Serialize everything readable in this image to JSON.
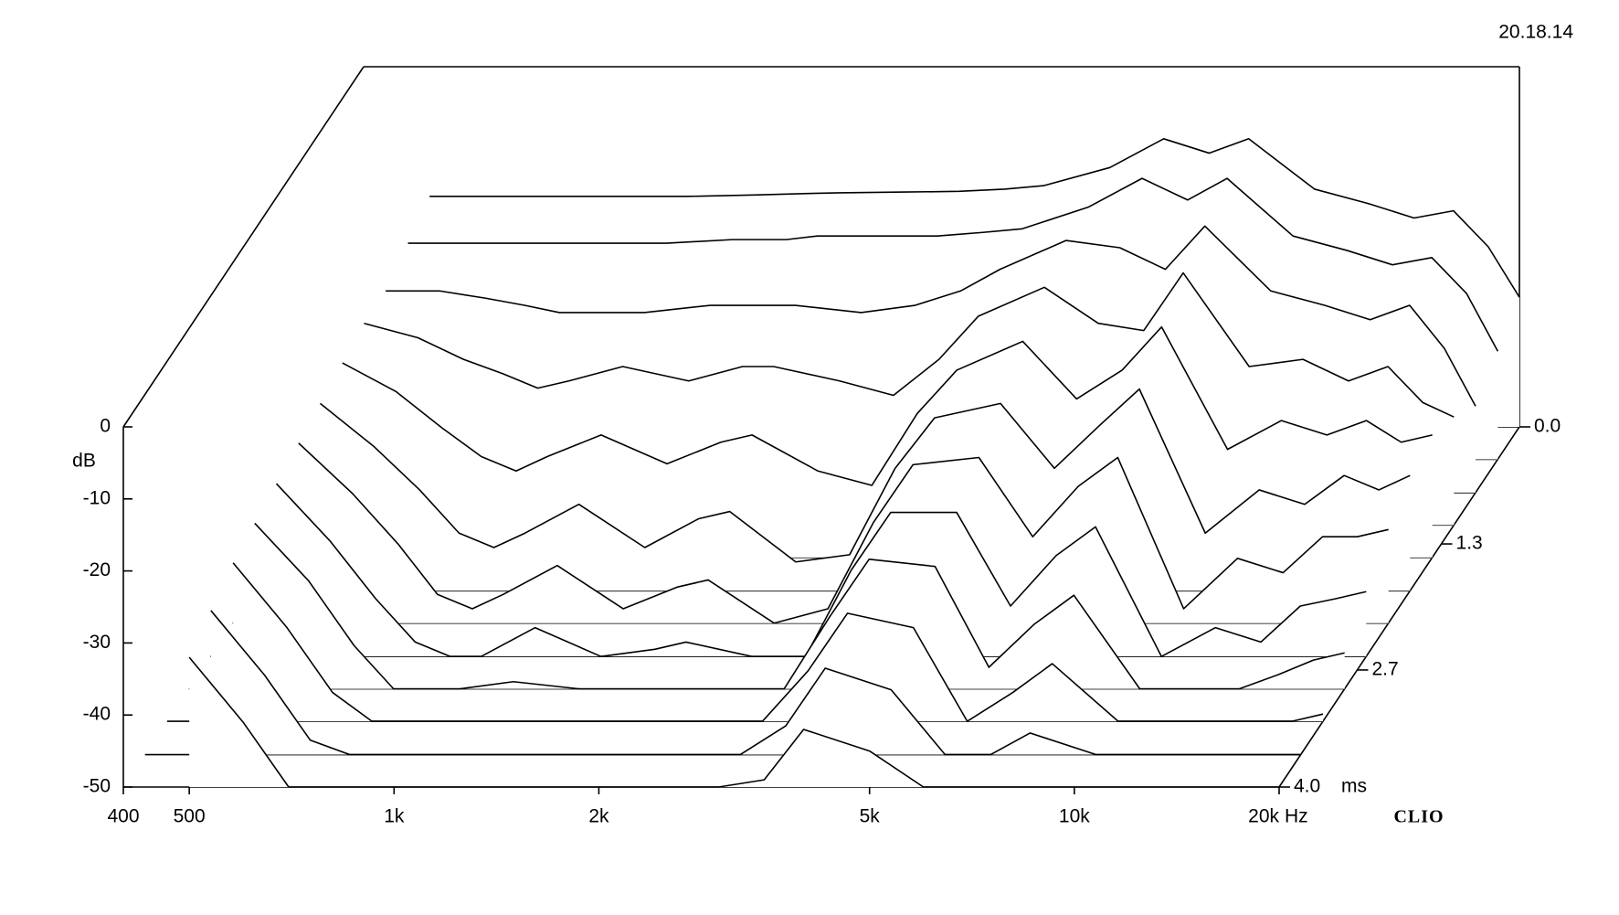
{
  "chart_data": {
    "type": "waterfall",
    "timestamp": "20.18.14",
    "brand": "CLIO",
    "ylabel": "dB",
    "xunit": "Hz",
    "zunit": "ms",
    "color": "#000000",
    "xlim": [
      400,
      20000
    ],
    "xscale": "log",
    "xticks": [
      400,
      500,
      {
        "value": 1000,
        "label": "1k"
      },
      {
        "value": 2000,
        "label": "2k"
      },
      {
        "value": 5000,
        "label": "5k"
      },
      {
        "value": 10000,
        "label": "10k"
      },
      {
        "value": 20000,
        "label": "20k"
      }
    ],
    "ylim": [
      -50,
      0
    ],
    "yticks": [
      0,
      -10,
      -20,
      -30,
      -40,
      -50
    ],
    "zlim": [
      0,
      4
    ],
    "zticks": [
      {
        "value": 0,
        "label": "0.0"
      },
      1.3,
      2.7,
      {
        "value": 4,
        "label": "4.0"
      }
    ],
    "x": [
      500,
      600,
      700,
      800,
      900,
      1000,
      1200,
      1500,
      1800,
      2000,
      2500,
      3000,
      3500,
      4000,
      5000,
      6000,
      7000,
      8000,
      10000,
      12000,
      14000,
      16000,
      18000,
      20000
    ],
    "times": [
      0,
      0.36,
      0.73,
      1.09,
      1.45,
      1.82,
      2.18,
      2.55,
      2.91,
      3.27,
      3.64,
      4
    ],
    "series": [
      {
        "values": [
          -18,
          -18,
          -18,
          -18,
          -18,
          -18,
          -18,
          -17.8,
          -17.6,
          -17.5,
          -17.4,
          -17.3,
          -17,
          -16.5,
          -14,
          -10,
          -12,
          -10,
          -17,
          -19,
          -21,
          -20,
          -25,
          -32
        ]
      },
      {
        "values": [
          -20,
          -20,
          -20,
          -20,
          -20,
          -20,
          -20,
          -19.5,
          -19.5,
          -19,
          -19,
          -19,
          -18.5,
          -18,
          -15,
          -11,
          -14,
          -11,
          -19,
          -21,
          -23,
          -22,
          -27,
          -35
        ]
      },
      {
        "values": [
          -22,
          -22,
          -23,
          -24,
          -25,
          -25,
          -25,
          -24,
          -24,
          -24,
          -25,
          -24,
          -22,
          -19,
          -15,
          -16,
          -19,
          -13,
          -22,
          -24,
          -26,
          -24,
          -30,
          -38
        ]
      },
      {
        "values": [
          -22,
          -24,
          -27,
          -29,
          -31,
          -30,
          -28,
          -30,
          -28,
          -28,
          -30,
          -32,
          -27,
          -21,
          -17,
          -22,
          -23,
          -15,
          -28,
          -27,
          -30,
          -28,
          -33,
          -35
        ]
      },
      {
        "values": [
          -23,
          -27,
          -32,
          -36,
          -38,
          -36,
          -33,
          -37,
          -34,
          -33,
          -38,
          -40,
          -30,
          -24,
          -20,
          -28,
          -24,
          -18,
          -35,
          -31,
          -33,
          -31,
          -34,
          -33
        ]
      },
      {
        "values": [
          -24,
          -30,
          -36,
          -42,
          -44,
          -42,
          -38,
          -44,
          -40,
          -39,
          -46,
          -45,
          -33,
          -26,
          -24,
          -33,
          -27,
          -22,
          -42,
          -36,
          -38,
          -34,
          -36,
          -34
        ]
      },
      {
        "values": [
          -25,
          -32,
          -39,
          -46,
          -48,
          -46,
          -42,
          -48,
          -45,
          -44,
          -50,
          -48,
          -36,
          -28,
          -27,
          -38,
          -31,
          -27,
          -48,
          -41,
          -43,
          -38,
          -38,
          -37
        ]
      },
      {
        "values": [
          -26,
          -34,
          -42,
          -48,
          -50,
          -50,
          -46,
          -50,
          -49,
          -48,
          -50,
          -50,
          -38,
          -30,
          -30,
          -43,
          -36,
          -32,
          -50,
          -46,
          -48,
          -43,
          -42,
          -41
        ]
      },
      {
        "values": [
          -27,
          -35,
          -44,
          -50,
          -50,
          -50,
          -49,
          -50,
          -50,
          -50,
          -50,
          -50,
          -40,
          -32,
          -33,
          -47,
          -41,
          -37,
          -50,
          -50,
          -50,
          -48,
          -46,
          -45
        ]
      },
      {
        "values": [
          -28,
          -37,
          -46,
          -50,
          -50,
          -50,
          -50,
          -50,
          -50,
          -50,
          -50,
          -50,
          -43,
          -35,
          -37,
          -50,
          -46,
          -42,
          -50,
          -50,
          -50,
          -50,
          -50,
          -49
        ]
      },
      {
        "values": [
          -30,
          -39,
          -48,
          -50,
          -50,
          -50,
          -50,
          -50,
          -50,
          -50,
          -50,
          -50,
          -46,
          -38,
          -41,
          -50,
          -50,
          -47,
          -50,
          -50,
          -50,
          -50,
          -50,
          -50
        ]
      },
      {
        "values": [
          -32,
          -41,
          -50,
          -50,
          -50,
          -50,
          -50,
          -50,
          -50,
          -50,
          -50,
          -50,
          -49,
          -42,
          -45,
          -50,
          -50,
          -50,
          -50,
          -50,
          -50,
          -50,
          -50,
          -50
        ]
      }
    ]
  }
}
